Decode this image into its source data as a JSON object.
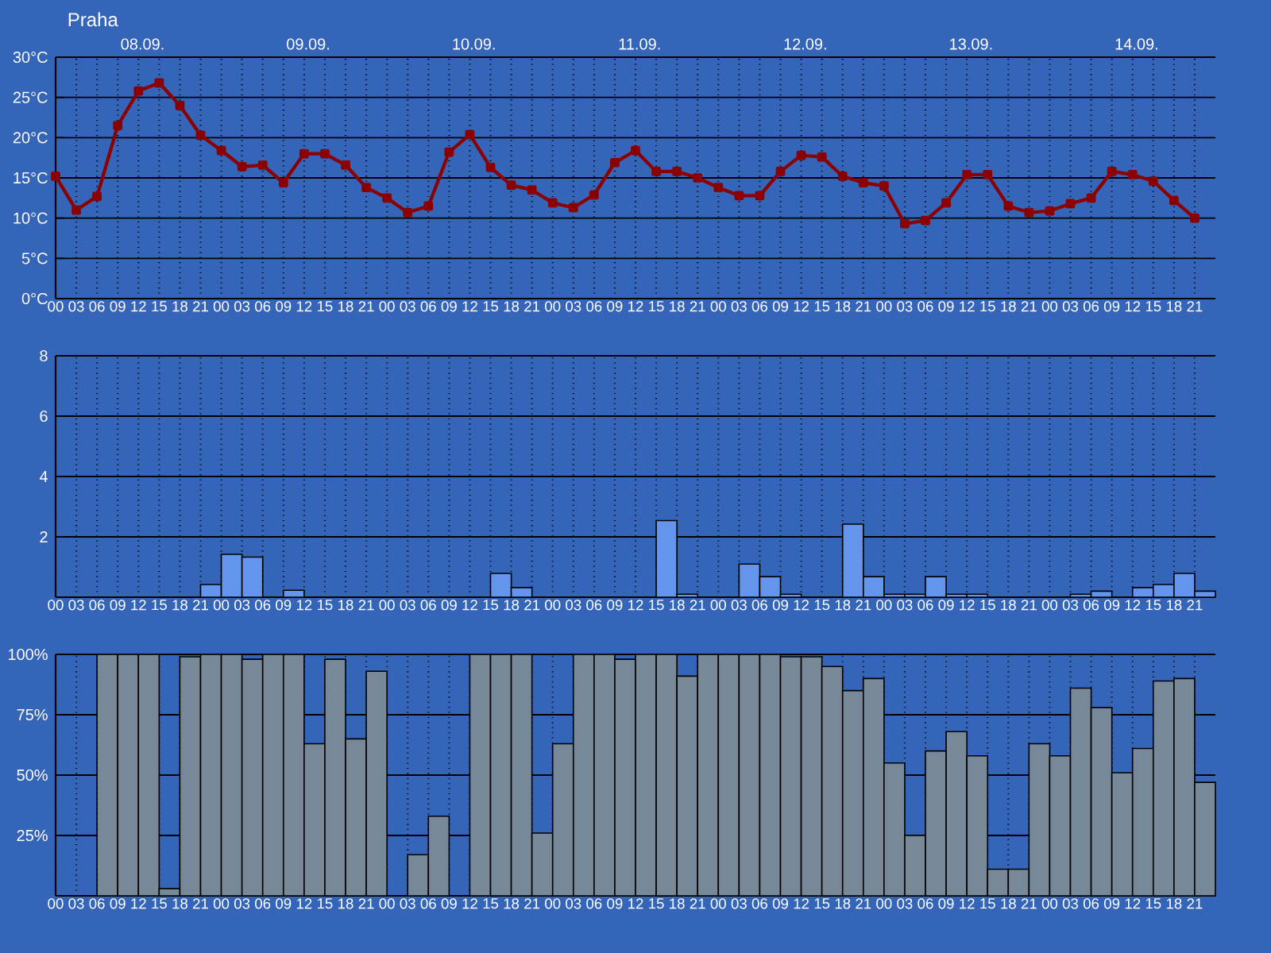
{
  "chart_data": [
    {
      "type": "line",
      "title": "Praha",
      "categories": [
        "00",
        "03",
        "06",
        "09",
        "12",
        "15",
        "18",
        "21",
        "00",
        "03",
        "06",
        "09",
        "12",
        "15",
        "18",
        "21",
        "00",
        "03",
        "06",
        "09",
        "12",
        "15",
        "18",
        "21",
        "00",
        "03",
        "06",
        "09",
        "12",
        "15",
        "18",
        "21",
        "00",
        "03",
        "06",
        "09",
        "12",
        "15",
        "18",
        "21",
        "00",
        "03",
        "06",
        "09",
        "12",
        "15",
        "18",
        "21",
        "00",
        "03",
        "06",
        "09",
        "12",
        "15",
        "18",
        "21"
      ],
      "values": [
        15.2,
        11.0,
        12.7,
        21.5,
        25.8,
        26.8,
        24.0,
        20.3,
        18.4,
        16.4,
        16.6,
        14.4,
        18.0,
        18.0,
        16.6,
        13.8,
        12.5,
        10.7,
        11.5,
        18.2,
        20.4,
        16.3,
        14.1,
        13.5,
        11.9,
        11.3,
        12.9,
        16.9,
        18.4,
        15.8,
        15.8,
        15.0,
        13.8,
        12.8,
        12.8,
        15.8,
        17.8,
        17.6,
        15.2,
        14.4,
        14.0,
        9.3,
        9.7,
        11.9,
        15.4,
        15.4,
        11.5,
        10.7,
        10.9,
        11.8,
        12.5,
        15.8,
        15.4,
        14.6,
        12.2,
        10.0
      ],
      "color": "#8b0000",
      "marker": "square",
      "line_style": "solid",
      "ylim": [
        0,
        30
      ],
      "yticks": [
        {
          "value": 0,
          "label": "0°C"
        },
        {
          "value": 5,
          "label": "5°C"
        },
        {
          "value": 10,
          "label": "10°C"
        },
        {
          "value": 15,
          "label": "15°C"
        },
        {
          "value": 20,
          "label": "20°C"
        },
        {
          "value": 25,
          "label": "25°C"
        },
        {
          "value": 30,
          "label": "30°C"
        }
      ],
      "grid": true,
      "annotations": [
        "08.09.",
        "09.09.",
        "10.09.",
        "11.09.",
        "12.09.",
        "13.09.",
        "14.09."
      ]
    },
    {
      "type": "bar",
      "categories": [
        "00",
        "03",
        "06",
        "09",
        "12",
        "15",
        "18",
        "21",
        "00",
        "03",
        "06",
        "09",
        "12",
        "15",
        "18",
        "21",
        "00",
        "03",
        "06",
        "09",
        "12",
        "15",
        "18",
        "21",
        "00",
        "03",
        "06",
        "09",
        "12",
        "15",
        "18",
        "21",
        "00",
        "03",
        "06",
        "09",
        "12",
        "15",
        "18",
        "21",
        "00",
        "03",
        "06",
        "09",
        "12",
        "15",
        "18",
        "21",
        "00",
        "03",
        "06",
        "09",
        "12",
        "15",
        "18",
        "21"
      ],
      "values": [
        null,
        null,
        null,
        null,
        null,
        null,
        null,
        0.42,
        1.42,
        1.33,
        null,
        0.23,
        null,
        null,
        null,
        null,
        null,
        null,
        null,
        null,
        null,
        0.79,
        0.32,
        null,
        null,
        null,
        null,
        null,
        null,
        2.54,
        0.1,
        null,
        null,
        1.1,
        0.68,
        0.1,
        null,
        null,
        2.42,
        0.68,
        0.1,
        0.1,
        0.68,
        0.1,
        0.1,
        null,
        null,
        null,
        null,
        0.1,
        0.2,
        null,
        0.32,
        0.42,
        0.79,
        0.2
      ],
      "color": "#6495ed",
      "ylim": [
        0,
        8
      ],
      "yticks": [
        2,
        4,
        6,
        8
      ],
      "grid": true
    },
    {
      "type": "bar",
      "categories": [
        "00",
        "03",
        "06",
        "09",
        "12",
        "15",
        "18",
        "21",
        "00",
        "03",
        "06",
        "09",
        "12",
        "15",
        "18",
        "21",
        "00",
        "03",
        "06",
        "09",
        "12",
        "15",
        "18",
        "21",
        "00",
        "03",
        "06",
        "09",
        "12",
        "15",
        "18",
        "21",
        "00",
        "03",
        "06",
        "09",
        "12",
        "15",
        "18",
        "21",
        "00",
        "03",
        "06",
        "09",
        "12",
        "15",
        "18",
        "21",
        "00",
        "03",
        "06",
        "09",
        "12",
        "15",
        "18",
        "21"
      ],
      "values": [
        null,
        null,
        100,
        100,
        100,
        3,
        99,
        100,
        100,
        98,
        100,
        100,
        63,
        98,
        65,
        93,
        null,
        17,
        33,
        null,
        100,
        100,
        100,
        26,
        63,
        100,
        100,
        98,
        100,
        100,
        91,
        100,
        100,
        100,
        100,
        99,
        99,
        95,
        85,
        90,
        55,
        25,
        60,
        68,
        58,
        11,
        11,
        63,
        58,
        86,
        78,
        51,
        61,
        89,
        90,
        47
      ],
      "color": "#778899",
      "ylim": [
        0,
        100
      ],
      "yticks": [
        {
          "value": 25,
          "label": "25%"
        },
        {
          "value": 50,
          "label": "50%"
        },
        {
          "value": 75,
          "label": "75%"
        },
        {
          "value": 100,
          "label": "100%"
        }
      ],
      "grid": true
    }
  ]
}
